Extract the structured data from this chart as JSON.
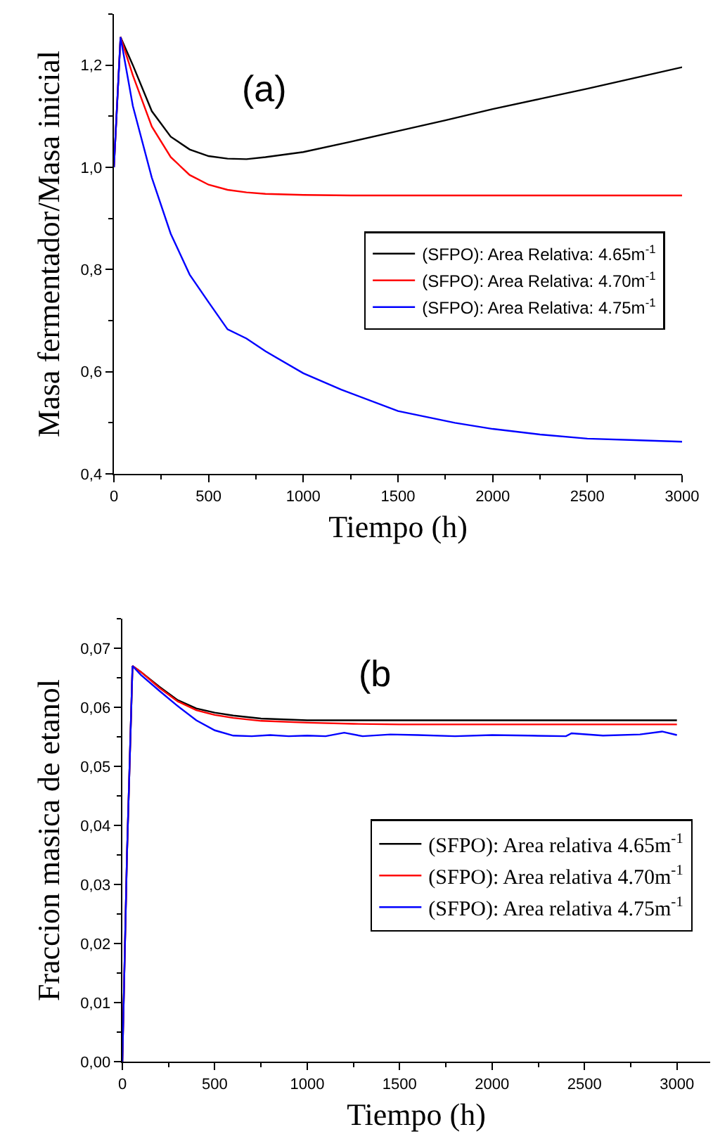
{
  "chart_data": [
    {
      "type": "line",
      "xlabel": "Tiempo (h)",
      "ylabel": "Masa fermentador/Masa inicial",
      "annotations": [
        "(a)"
      ],
      "xlim": [
        0,
        3000
      ],
      "xticks": [
        0,
        500,
        1000,
        1500,
        2000,
        2500,
        3000
      ],
      "ylim": [
        0.4,
        1.3
      ],
      "yticks": [
        {
          "value": 0.4,
          "label": "0,4"
        },
        {
          "value": 0.6,
          "label": "0,6"
        },
        {
          "value": 0.8,
          "label": "0,8"
        },
        {
          "value": 1.0,
          "label": "1,0"
        },
        {
          "value": 1.2,
          "label": "1,2"
        }
      ],
      "grid": false,
      "legend": "right",
      "marker": "none",
      "line_style": "solid",
      "series": [
        {
          "name": "(SFPO): Area Relativa: 4.65m$^{-1}$",
          "color": "#000000",
          "x": [
            0,
            35,
            100,
            200,
            300,
            400,
            500,
            600,
            700,
            800,
            1000,
            1250,
            1500,
            1750,
            2000,
            2250,
            2500,
            2750,
            3000
          ],
          "values": [
            1.0,
            1.255,
            1.2,
            1.11,
            1.06,
            1.035,
            1.022,
            1.017,
            1.016,
            1.02,
            1.03,
            1.05,
            1.071,
            1.092,
            1.114,
            1.134,
            1.154,
            1.175,
            1.196
          ]
        },
        {
          "name": "(SFPO): Area Relativa: 4.70m$^{-1}$",
          "color": "#ff0000",
          "x": [
            0,
            35,
            100,
            200,
            300,
            400,
            500,
            600,
            700,
            800,
            1000,
            1250,
            1500,
            2000,
            2500,
            3000
          ],
          "values": [
            1.0,
            1.255,
            1.18,
            1.08,
            1.02,
            0.985,
            0.966,
            0.956,
            0.951,
            0.948,
            0.946,
            0.945,
            0.945,
            0.945,
            0.945,
            0.945
          ]
        },
        {
          "name": "(SFPO): Area Relativa: 4.75m$^{-1}$",
          "color": "#0000ff",
          "x": [
            0,
            35,
            100,
            200,
            300,
            400,
            500,
            600,
            700,
            800,
            1000,
            1200,
            1500,
            1800,
            2000,
            2250,
            2500,
            2750,
            3000
          ],
          "values": [
            1.0,
            1.255,
            1.12,
            0.98,
            0.87,
            0.79,
            0.736,
            0.683,
            0.665,
            0.64,
            0.597,
            0.565,
            0.523,
            0.5,
            0.488,
            0.477,
            0.469,
            0.466,
            0.463
          ]
        }
      ]
    },
    {
      "type": "line",
      "xlabel": "Tiempo (h)",
      "ylabel": "Fraccion masica de etanol",
      "annotations": [
        "(b"
      ],
      "xlim": [
        0,
        3180
      ],
      "xticks": [
        0,
        500,
        1000,
        1500,
        2000,
        2500,
        3000
      ],
      "ylim": [
        0,
        0.075
      ],
      "yticks": [
        {
          "value": 0,
          "label": "0,00"
        },
        {
          "value": 0.01,
          "label": "0,01"
        },
        {
          "value": 0.02,
          "label": "0,02"
        },
        {
          "value": 0.03,
          "label": "0,03"
        },
        {
          "value": 0.04,
          "label": "0,04"
        },
        {
          "value": 0.05,
          "label": "0,05"
        },
        {
          "value": 0.06,
          "label": "0,06"
        },
        {
          "value": 0.07,
          "label": "0,07"
        }
      ],
      "grid": false,
      "legend": "right",
      "marker": "none",
      "line_style": "solid",
      "series": [
        {
          "name": "(SFPO): Area relativa 4.65m$^{-1}$",
          "color": "#000000",
          "x": [
            0,
            25,
            55,
            100,
            200,
            300,
            400,
            500,
            600,
            750,
            1000,
            1500,
            2000,
            2500,
            3000
          ],
          "values": [
            0,
            0.035,
            0.067,
            0.066,
            0.0635,
            0.0612,
            0.0598,
            0.0591,
            0.0586,
            0.0581,
            0.0578,
            0.0578,
            0.0578,
            0.0578,
            0.0578
          ]
        },
        {
          "name": "(SFPO): Area relativa 4.70m$^{-1}$",
          "color": "#ff0000",
          "x": [
            0,
            25,
            55,
            100,
            200,
            300,
            400,
            500,
            600,
            750,
            1000,
            1250,
            1500,
            2000,
            2500,
            3000
          ],
          "values": [
            0,
            0.035,
            0.067,
            0.066,
            0.0633,
            0.061,
            0.0595,
            0.0587,
            0.0582,
            0.0577,
            0.0574,
            0.0572,
            0.0571,
            0.0571,
            0.0571,
            0.0571
          ]
        },
        {
          "name": "(SFPO): Area relativa 4.75m$^{-1}$",
          "color": "#0000ff",
          "x": [
            0,
            25,
            55,
            100,
            200,
            300,
            400,
            500,
            600,
            700,
            800,
            900,
            1000,
            1100,
            1200,
            1300,
            1450,
            1600,
            1800,
            2000,
            2200,
            2400,
            2430,
            2600,
            2800,
            2920,
            3000
          ],
          "values": [
            0,
            0.035,
            0.067,
            0.0655,
            0.0628,
            0.0602,
            0.0578,
            0.0561,
            0.0552,
            0.0551,
            0.0553,
            0.0551,
            0.0552,
            0.0551,
            0.0557,
            0.0551,
            0.0554,
            0.0553,
            0.0551,
            0.0553,
            0.0552,
            0.0551,
            0.0556,
            0.0552,
            0.0554,
            0.0559,
            0.0553
          ]
        }
      ]
    }
  ]
}
